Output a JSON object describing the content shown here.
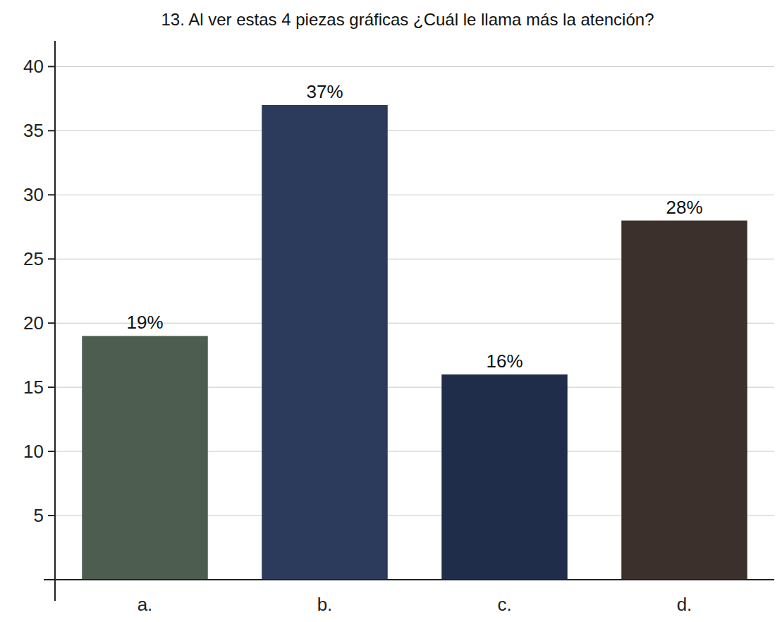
{
  "chart_data": {
    "type": "bar",
    "title": "13. Al ver estas 4 piezas gráficas ¿Cuál le llama más la atención?",
    "categories": [
      "a.",
      "b.",
      "c.",
      "d."
    ],
    "values": [
      19,
      37,
      16,
      28
    ],
    "value_labels": [
      "19%",
      "37%",
      "16%",
      "28%"
    ],
    "colors": [
      "#4d5d4f",
      "#2c3a5c",
      "#1f2d4a",
      "#3b302b"
    ],
    "ylim": [
      0,
      42
    ],
    "yticks": [
      5,
      10,
      15,
      20,
      25,
      30,
      35,
      40
    ],
    "grid": true,
    "data_labels": true
  }
}
